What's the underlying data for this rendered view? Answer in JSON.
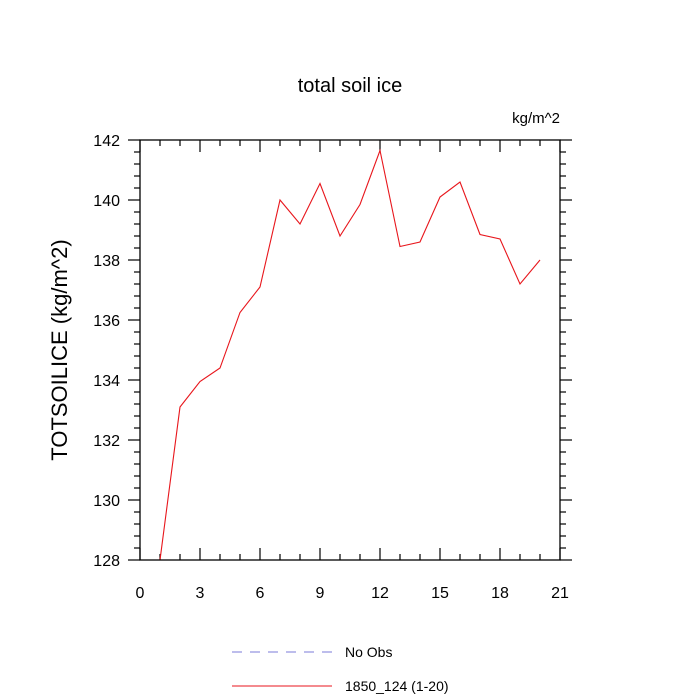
{
  "chart_data": {
    "type": "line",
    "title": "total soil ice",
    "units_label": "kg/m^2",
    "xlabel": "",
    "ylabel": "TOTSOILICE  (kg/m^2)",
    "xlim": [
      0,
      21
    ],
    "ylim": [
      128,
      142
    ],
    "x_ticks": [
      0,
      3,
      6,
      9,
      12,
      15,
      18,
      21
    ],
    "y_ticks": [
      128,
      130,
      132,
      134,
      136,
      138,
      140,
      142
    ],
    "grid": false,
    "legend_position": "bottom-center",
    "series": [
      {
        "name": "No Obs",
        "color": "#7b7bd9",
        "dash": "dashed",
        "x": [],
        "y": []
      },
      {
        "name": "1850_124 (1-20)",
        "color": "#e8161c",
        "dash": "solid",
        "x": [
          1,
          2,
          3,
          4,
          5,
          6,
          7,
          8,
          9,
          10,
          11,
          12,
          13,
          14,
          15,
          16,
          17,
          18,
          19,
          20
        ],
        "y": [
          128.0,
          133.1,
          133.95,
          134.4,
          136.25,
          137.1,
          140.0,
          139.2,
          140.55,
          138.8,
          139.85,
          141.65,
          138.45,
          138.6,
          140.1,
          140.6,
          138.85,
          138.7,
          137.2,
          138.0
        ]
      }
    ]
  }
}
